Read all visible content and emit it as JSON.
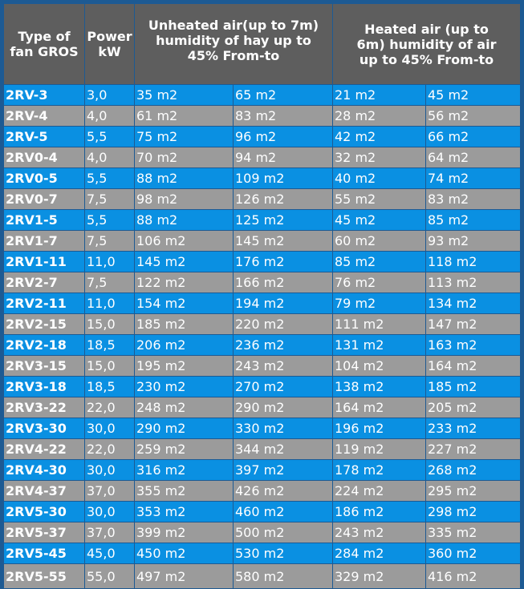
{
  "table": {
    "headers": {
      "type": "Type of fan GROS",
      "power": "Power kW",
      "unheated": "Unheated air(up to 7m) humidity of hay up to 45% From-to",
      "heated": "Heated air (up to 6m) humidity of air up to 45% From-to"
    },
    "colors": {
      "header": "#5e5e5e",
      "row_blue": "#0a90e2",
      "row_gray": "#9b9b9b",
      "border": "#1d5a93"
    },
    "rows": [
      [
        "2RV-3",
        "3,0",
        "35 m2",
        "65 m2",
        "21 m2",
        "45 m2"
      ],
      [
        "2RV-4",
        "4,0",
        "61 m2",
        "83 m2",
        "28 m2",
        "56 m2"
      ],
      [
        "2RV-5",
        "5,5",
        "75 m2",
        "96 m2",
        "42 m2",
        "66 m2"
      ],
      [
        "2RV0-4",
        "4,0",
        "70 m2",
        "94 m2",
        "32 m2",
        "64 m2"
      ],
      [
        "2RV0-5",
        "5,5",
        "88 m2",
        "109 m2",
        "40 m2",
        "74 m2"
      ],
      [
        "2RV0-7",
        "7,5",
        "98 m2",
        "126 m2",
        "55 m2",
        "83 m2"
      ],
      [
        "2RV1-5",
        "5,5",
        "88 m2",
        "125 m2",
        "45 m2",
        "85 m2"
      ],
      [
        "2RV1-7",
        "7,5",
        "106 m2",
        "145 m2",
        "60 m2",
        "93 m2"
      ],
      [
        "2RV1-11",
        "11,0",
        "145 m2",
        "176 m2",
        "85 m2",
        "118 m2"
      ],
      [
        "2RV2-7",
        "7,5",
        "122 m2",
        "166 m2",
        "76 m2",
        "113 m2"
      ],
      [
        "2RV2-11",
        "11,0",
        "154 m2",
        "194 m2",
        "79 m2",
        "134 m2"
      ],
      [
        "2RV2-15",
        "15,0",
        "185 m2",
        "220 m2",
        "111 m2",
        "147 m2"
      ],
      [
        "2RV2-18",
        "18,5",
        "206 m2",
        "236 m2",
        "131 m2",
        "163 m2"
      ],
      [
        "2RV3-15",
        "15,0",
        "195 m2",
        "243 m2",
        "104 m2",
        "164 m2"
      ],
      [
        "2RV3-18",
        "18,5",
        "230 m2",
        "270 m2",
        "138 m2",
        "185 m2"
      ],
      [
        "2RV3-22",
        "22,0",
        "248 m2",
        "290 m2",
        "164 m2",
        "205 m2"
      ],
      [
        "2RV3-30",
        "30,0",
        "290 m2",
        "330 m2",
        "196 m2",
        "233 m2"
      ],
      [
        "2RV4-22",
        "22,0",
        "259 m2",
        "344 m2",
        "119 m2",
        "227 m2"
      ],
      [
        "2RV4-30",
        "30,0",
        "316 m2",
        "397 m2",
        "178 m2",
        "268 m2"
      ],
      [
        "2RV4-37",
        "37,0",
        "355 m2",
        "426 m2",
        "224 m2",
        "295 m2"
      ],
      [
        "2RV5-30",
        "30,0",
        "353 m2",
        "460 m2",
        "186 m2",
        "298 m2"
      ],
      [
        "2RV5-37",
        "37,0",
        "399 m2",
        "500 m2",
        "243 m2",
        "335 m2"
      ],
      [
        "2RV5-45",
        "45,0",
        "450 m2",
        "530 m2",
        "284 m2",
        "360 m2"
      ],
      [
        "2RV5-55",
        "55,0",
        "497 m2",
        "580 m2",
        "329 m2",
        "416 m2"
      ]
    ]
  }
}
